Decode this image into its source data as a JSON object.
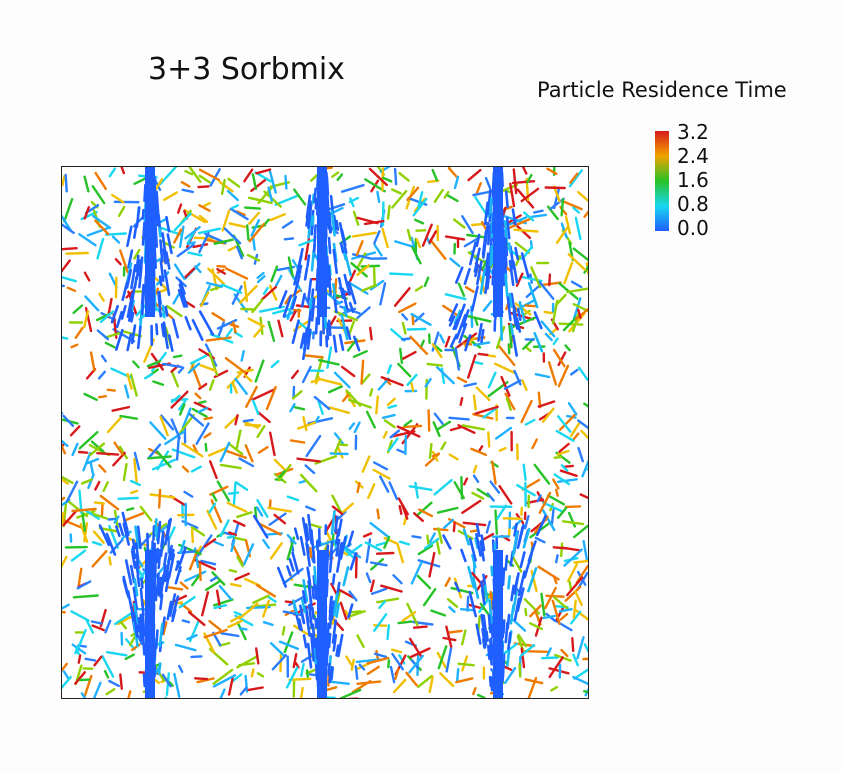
{
  "title": "3+3 Sorbmix",
  "legend": {
    "title": "Particle Residence Time",
    "ticks": [
      "3.2",
      "2.4",
      "1.6",
      "0.8",
      "0.0"
    ],
    "colors": [
      "#d7191c",
      "#f0a300",
      "#27c227",
      "#19d7f0",
      "#1f5fff"
    ]
  },
  "plot": {
    "description_icon": "particle-streak-field",
    "jets": {
      "top_row_count": 3,
      "bottom_row_count": 3,
      "color": "#1f5fff"
    }
  }
}
